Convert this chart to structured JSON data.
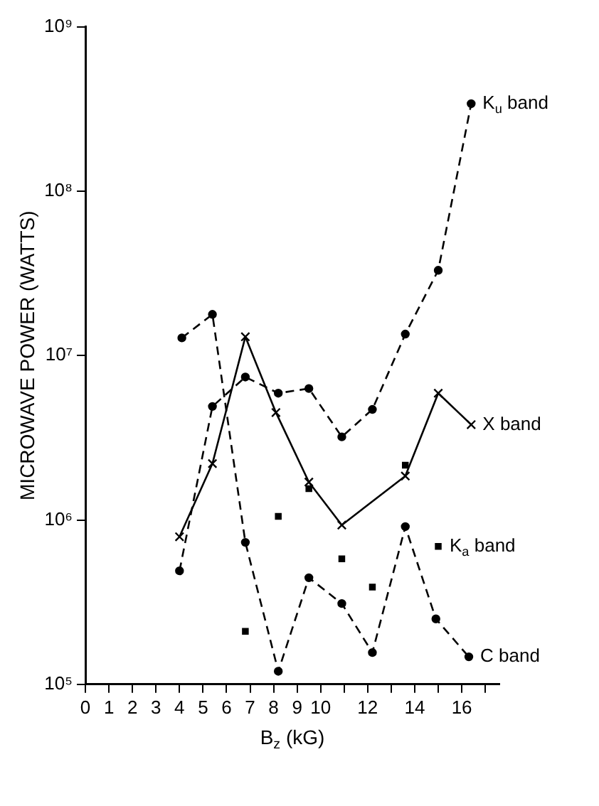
{
  "chart_data": {
    "type": "line",
    "xlabel": "B$_{z}$ (kG)",
    "ylabel": "MICROWAVE POWER (WATTS)",
    "log": "y",
    "grid": false,
    "legend": false,
    "xlim": [
      0,
      17.6
    ],
    "xticks": [
      0,
      1,
      2,
      3,
      4,
      5,
      6,
      7,
      8,
      9,
      10,
      {
        "value": 11,
        "label": null
      },
      12,
      {
        "value": 13,
        "label": null
      },
      14,
      {
        "value": 15,
        "label": null
      },
      16,
      {
        "value": 17,
        "label": null
      }
    ],
    "ylim": [
      100000,
      1000000000
    ],
    "yticks": [
      {
        "value": 100000,
        "label": "10⁵"
      },
      {
        "value": 1000000,
        "label": "10⁶"
      },
      {
        "value": 10000000,
        "label": "10⁷"
      },
      {
        "value": 100000000,
        "label": "10⁸"
      },
      {
        "value": 1000000000,
        "label": "10⁹"
      }
    ],
    "series": [
      {
        "name": "K$_{u}$ band",
        "type": "line",
        "color": "#000000",
        "marker": "circle",
        "line_style": "dashed",
        "x": [
          4.0,
          5.4,
          6.8,
          8.2,
          9.5,
          10.9,
          12.2,
          13.6,
          15.0,
          16.4
        ],
        "values": [
          490000,
          4900000,
          7400000,
          5900000,
          6300000,
          3200000,
          4700000,
          13500000,
          33000000,
          340000000
        ]
      },
      {
        "name": "X band",
        "type": "line",
        "color": "#000000",
        "marker": "cross",
        "line_style": "solid",
        "x": [
          4.0,
          5.4,
          6.8,
          8.1,
          9.5,
          10.9,
          13.6,
          15.0,
          16.4
        ],
        "values": [
          790000,
          2200000,
          13000000,
          4500000,
          1700000,
          930000,
          1850000,
          5900000,
          3800000
        ]
      },
      {
        "name": "K$_{a}$ band",
        "type": "scatter",
        "color": "#000000",
        "marker": "square",
        "x": [
          6.8,
          8.2,
          9.5,
          10.9,
          12.2,
          13.6,
          15.0
        ],
        "values": [
          210000,
          1050000,
          1550000,
          580000,
          390000,
          2150000,
          690000
        ]
      },
      {
        "name": "C band",
        "type": "line",
        "color": "#000000",
        "marker": "circle",
        "line_style": "dashed",
        "x": [
          4.1,
          5.4,
          6.8,
          8.2,
          9.5,
          10.9,
          12.2,
          13.6,
          14.9,
          16.3
        ],
        "values": [
          12800000,
          17800000,
          730000,
          120000,
          445000,
          310000,
          156000,
          910000,
          250000,
          147000
        ]
      }
    ]
  }
}
